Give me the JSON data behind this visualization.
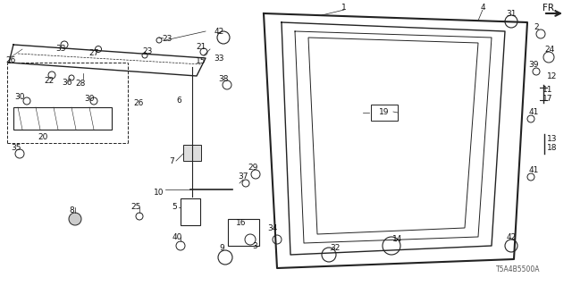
{
  "bg_color": "#ffffff",
  "diagram_code": "T5A4B5500A",
  "fr_arrow_text": "FR.",
  "line_color": "#222222",
  "text_color": "#111111",
  "font_size": 6.5
}
